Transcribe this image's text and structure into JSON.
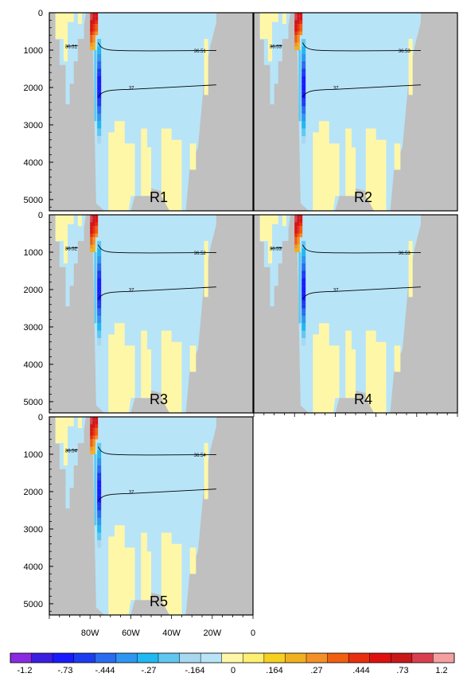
{
  "chart_data": {
    "type": "heatmap",
    "title": "",
    "xlabel": "",
    "ylabel": "",
    "xlim": [
      -100,
      0
    ],
    "ylim": [
      5300,
      0
    ],
    "x_ticks": [
      "80W",
      "60W",
      "40W",
      "20W",
      "0"
    ],
    "x_tick_values": [
      -80,
      -60,
      -40,
      -20,
      0
    ],
    "y_ticks": [
      "0",
      "1000",
      "2000",
      "3000",
      "4000",
      "5000"
    ],
    "y_tick_values": [
      0,
      1000,
      2000,
      3000,
      4000,
      5000
    ],
    "land_color": "#c0c0c0",
    "panels": [
      {
        "label": "R1",
        "contours": [
          {
            "value": 36.51,
            "label": "36.51"
          },
          {
            "value": 37,
            "label": "37"
          }
        ]
      },
      {
        "label": "R2",
        "contours": [
          {
            "value": 36.53,
            "label": "36.53"
          },
          {
            "value": 37,
            "label": "37"
          }
        ]
      },
      {
        "label": "R3",
        "contours": [
          {
            "value": 36.52,
            "label": "36.52"
          },
          {
            "value": 37,
            "label": "37"
          }
        ]
      },
      {
        "label": "R4",
        "contours": [
          {
            "value": 36.53,
            "label": "36.53"
          },
          {
            "value": 37,
            "label": "37"
          }
        ]
      },
      {
        "label": "R5",
        "contours": [
          {
            "value": 36.54,
            "label": "36.54"
          },
          {
            "value": 37,
            "label": "37"
          }
        ]
      }
    ],
    "colorbar": {
      "labels": [
        "-1.2",
        "-.73",
        "-.444",
        "-.27",
        "-.164",
        "0",
        ".164",
        ".27",
        ".444",
        ".73",
        "1.2"
      ],
      "colors": [
        "#8a2be2",
        "#3c1ee0",
        "#1a1aff",
        "#1c3cf0",
        "#2a6cf0",
        "#2e96f0",
        "#20b8f0",
        "#60c8f0",
        "#a8d8f0",
        "#b8e4f8",
        "#fff7a8",
        "#ffef70",
        "#f5d020",
        "#f0b020",
        "#f59028",
        "#f06010",
        "#e83010",
        "#e01010",
        "#c81818",
        "#d84050",
        "#f4a0a0"
      ]
    }
  }
}
